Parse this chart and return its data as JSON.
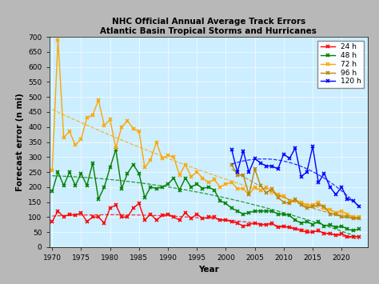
{
  "title_line1": "NHC Official Annual Average Track Errors",
  "title_line2": "Atlantic Basin Tropical Storms and Hurricanes",
  "xlabel": "Year",
  "ylabel": "Forecast error (n mi)",
  "bg_color": "#cceeff",
  "fig_bg_color": "#b8b8b8",
  "ylim": [
    0,
    700
  ],
  "xlim": [
    1969.5,
    2024.5
  ],
  "xticks": [
    1970,
    1975,
    1980,
    1985,
    1990,
    1995,
    2000,
    2005,
    2010,
    2015,
    2020
  ],
  "series": {
    "24h": {
      "color": "#ff0000",
      "label": "24 h",
      "years": [
        1970,
        1971,
        1972,
        1973,
        1974,
        1975,
        1976,
        1977,
        1978,
        1979,
        1980,
        1981,
        1982,
        1983,
        1984,
        1985,
        1986,
        1987,
        1988,
        1989,
        1990,
        1991,
        1992,
        1993,
        1994,
        1995,
        1996,
        1997,
        1998,
        1999,
        2000,
        2001,
        2002,
        2003,
        2004,
        2005,
        2006,
        2007,
        2008,
        2009,
        2010,
        2011,
        2012,
        2013,
        2014,
        2015,
        2016,
        2017,
        2018,
        2019,
        2020,
        2021,
        2022,
        2023
      ],
      "values": [
        85,
        120,
        100,
        110,
        105,
        115,
        85,
        100,
        100,
        80,
        130,
        140,
        100,
        100,
        130,
        145,
        90,
        110,
        90,
        105,
        110,
        100,
        90,
        115,
        95,
        110,
        95,
        100,
        100,
        90,
        90,
        85,
        80,
        70,
        75,
        80,
        75,
        75,
        80,
        65,
        70,
        65,
        60,
        55,
        50,
        50,
        55,
        45,
        45,
        40,
        45,
        35,
        35,
        35
      ]
    },
    "48h": {
      "color": "#008000",
      "label": "48 h",
      "years": [
        1970,
        1971,
        1972,
        1973,
        1974,
        1975,
        1976,
        1977,
        1978,
        1979,
        1980,
        1981,
        1982,
        1983,
        1984,
        1985,
        1986,
        1987,
        1988,
        1989,
        1990,
        1991,
        1992,
        1993,
        1994,
        1995,
        1996,
        1997,
        1998,
        1999,
        2000,
        2001,
        2002,
        2003,
        2004,
        2005,
        2006,
        2007,
        2008,
        2009,
        2010,
        2011,
        2012,
        2013,
        2014,
        2015,
        2016,
        2017,
        2018,
        2019,
        2020,
        2021,
        2022,
        2023
      ],
      "values": [
        185,
        250,
        205,
        250,
        205,
        245,
        205,
        280,
        160,
        200,
        265,
        325,
        195,
        245,
        275,
        245,
        165,
        200,
        195,
        200,
        210,
        230,
        190,
        230,
        200,
        210,
        195,
        200,
        190,
        155,
        145,
        130,
        120,
        110,
        115,
        120,
        120,
        120,
        120,
        110,
        110,
        105,
        90,
        80,
        85,
        75,
        85,
        70,
        75,
        65,
        70,
        60,
        55,
        60
      ]
    },
    "72h": {
      "color": "#ffa500",
      "label": "72 h",
      "years": [
        1970,
        1971,
        1972,
        1973,
        1974,
        1975,
        1976,
        1977,
        1978,
        1979,
        1980,
        1981,
        1982,
        1983,
        1984,
        1985,
        1986,
        1987,
        1988,
        1989,
        1990,
        1991,
        1992,
        1993,
        1994,
        1995,
        1996,
        1997,
        1998,
        1999,
        2000,
        2001,
        2002,
        2003,
        2004,
        2005,
        2006,
        2007,
        2008,
        2009,
        2010,
        2011,
        2012,
        2013,
        2014,
        2015,
        2016,
        2017,
        2018,
        2019,
        2020,
        2021,
        2022,
        2023
      ],
      "values": [
        255,
        690,
        365,
        385,
        340,
        360,
        430,
        440,
        490,
        405,
        425,
        330,
        400,
        420,
        395,
        385,
        265,
        290,
        350,
        295,
        305,
        300,
        240,
        275,
        235,
        250,
        230,
        215,
        225,
        200,
        210,
        215,
        195,
        195,
        175,
        200,
        190,
        200,
        185,
        175,
        170,
        155,
        155,
        150,
        140,
        140,
        150,
        130,
        125,
        115,
        120,
        110,
        100,
        100
      ]
    },
    "96h": {
      "color": "#b8860b",
      "label": "96 h",
      "years": [
        2001,
        2002,
        2003,
        2004,
        2005,
        2006,
        2007,
        2008,
        2009,
        2010,
        2011,
        2012,
        2013,
        2014,
        2015,
        2016,
        2017,
        2018,
        2019,
        2020,
        2021,
        2022,
        2023
      ],
      "values": [
        275,
        240,
        240,
        175,
        260,
        205,
        180,
        195,
        165,
        150,
        145,
        160,
        140,
        130,
        135,
        140,
        135,
        110,
        110,
        100,
        100,
        95,
        95
      ]
    },
    "120h": {
      "color": "#0000ff",
      "label": "120 h",
      "years": [
        2001,
        2002,
        2003,
        2004,
        2005,
        2006,
        2007,
        2008,
        2009,
        2010,
        2011,
        2012,
        2013,
        2014,
        2015,
        2016,
        2017,
        2018,
        2019,
        2020,
        2021,
        2022,
        2023
      ],
      "values": [
        325,
        250,
        320,
        250,
        295,
        280,
        270,
        270,
        260,
        310,
        295,
        330,
        235,
        250,
        335,
        215,
        245,
        200,
        175,
        200,
        160,
        155,
        135
      ]
    }
  }
}
